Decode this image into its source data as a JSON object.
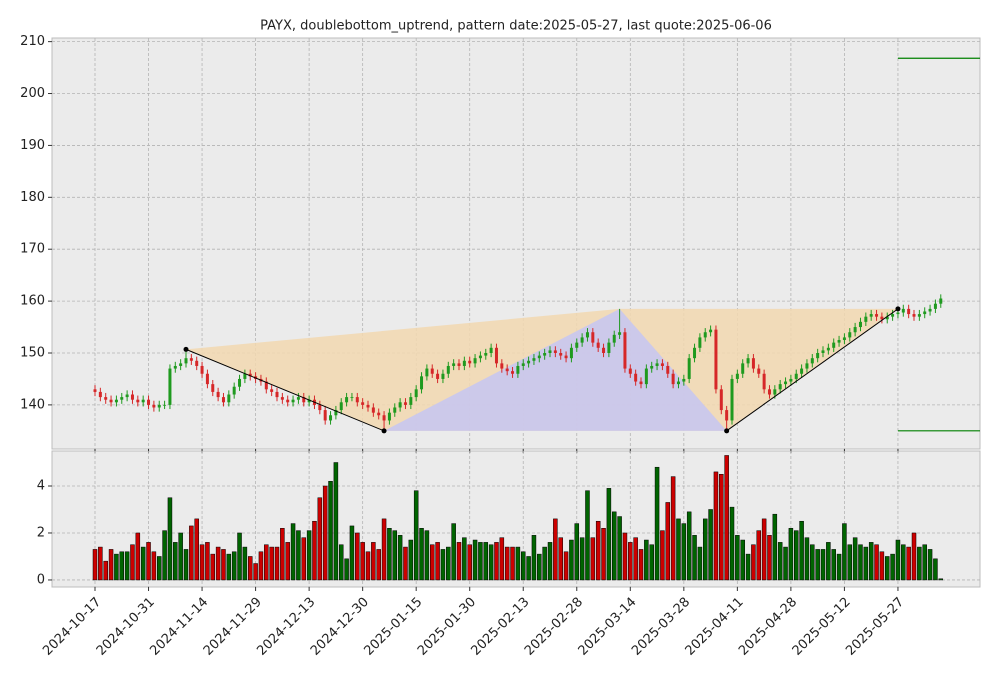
{
  "chart_data": [
    {
      "type": "candlestick",
      "title": "PAYX, doublebottom_uptrend, pattern date:2025-05-27, last quote:2025-06-06",
      "categories": [
        "2024-10-17",
        null,
        null,
        null,
        null,
        null,
        null,
        null,
        null,
        null,
        "2024-10-31",
        null,
        null,
        null,
        null,
        null,
        null,
        null,
        null,
        null,
        "2024-11-14",
        null,
        null,
        null,
        null,
        null,
        null,
        null,
        null,
        null,
        "2024-11-29",
        null,
        null,
        null,
        null,
        null,
        null,
        null,
        null,
        null,
        "2024-12-13",
        null,
        null,
        null,
        null,
        null,
        null,
        null,
        null,
        null,
        "2024-12-30",
        null,
        null,
        null,
        null,
        null,
        null,
        null,
        null,
        null,
        "2025-01-15",
        null,
        null,
        null,
        null,
        null,
        null,
        null,
        null,
        null,
        "2025-01-30",
        null,
        null,
        null,
        null,
        null,
        null,
        null,
        null,
        null,
        "2025-02-13",
        null,
        null,
        null,
        null,
        null,
        null,
        null,
        null,
        null,
        "2025-02-28",
        null,
        null,
        null,
        null,
        null,
        null,
        null,
        null,
        null,
        "2025-03-14",
        null,
        null,
        null,
        null,
        null,
        null,
        null,
        null,
        null,
        "2025-03-28",
        null,
        null,
        null,
        null,
        null,
        null,
        null,
        null,
        null,
        "2025-04-11",
        null,
        null,
        null,
        null,
        null,
        null,
        null,
        null,
        null,
        "2025-04-28",
        null,
        null,
        null,
        null,
        null,
        null,
        null,
        null,
        null,
        "2025-05-12",
        null,
        null,
        null,
        null,
        null,
        null,
        null,
        null,
        null,
        "2025-05-27",
        null,
        null,
        null,
        null,
        null,
        null,
        null,
        null
      ],
      "open": [
        143,
        142.5,
        141.5,
        141,
        140.5,
        141,
        141.5,
        142,
        141,
        140.5,
        141,
        140,
        139.5,
        140,
        140,
        147,
        147.5,
        148,
        149,
        148.5,
        147.5,
        146,
        144,
        142.5,
        141.5,
        140.5,
        142,
        143.5,
        145,
        146,
        145.5,
        145,
        144.5,
        143,
        142.5,
        141.5,
        141,
        140.5,
        141,
        141.5,
        140.5,
        141,
        140,
        139,
        137,
        138,
        139,
        140.5,
        141.5,
        141.5,
        140.5,
        140,
        139.5,
        138.5,
        138,
        137,
        138.5,
        139.5,
        140.5,
        140,
        141.5,
        143,
        145.5,
        147,
        146,
        145,
        146,
        147.5,
        148,
        147.5,
        148.5,
        148,
        149,
        149.5,
        150,
        151,
        148,
        147,
        146.5,
        146,
        147.5,
        148,
        148.5,
        149,
        149.5,
        150,
        150.5,
        150,
        149.5,
        149,
        151,
        152,
        153,
        154,
        152,
        151,
        150,
        152,
        153.5,
        154,
        147,
        146,
        144.5,
        144,
        147,
        147.5,
        148,
        147.5,
        146,
        144,
        144.5,
        145,
        149,
        151,
        153,
        154,
        154.5,
        143,
        139,
        137,
        145,
        146,
        148,
        149,
        147,
        146,
        143,
        142,
        143,
        144,
        144.5,
        145,
        146,
        147,
        148,
        149,
        150,
        150.5,
        151,
        152,
        152.5,
        153,
        154,
        155,
        156,
        157,
        157.5,
        157,
        156.5,
        157,
        157.5,
        157.8,
        158.5,
        157.5,
        157,
        157.5,
        158,
        158.5,
        159.5
      ],
      "high": [
        143.8,
        143.3,
        142.3,
        141.8,
        141.8,
        142.3,
        142.8,
        142.8,
        141.8,
        141.8,
        141.8,
        140.8,
        140.8,
        140.8,
        147.8,
        148.3,
        148.8,
        150.7,
        149.8,
        149.3,
        148.3,
        146.8,
        144.8,
        143.3,
        142.3,
        142.8,
        144.3,
        145.8,
        146.8,
        146.8,
        146.3,
        145.8,
        145.3,
        143.8,
        143.3,
        142.3,
        141.8,
        141.8,
        142.3,
        142.3,
        141.8,
        141.8,
        140.8,
        139.8,
        138.8,
        139.8,
        141.3,
        142.3,
        142.3,
        142.3,
        141.3,
        140.8,
        140.3,
        139.3,
        138.8,
        139.3,
        140.3,
        141.3,
        141.3,
        142.3,
        143.8,
        146.3,
        147.8,
        147.8,
        146.8,
        146.8,
        148.3,
        148.8,
        148.8,
        149.3,
        149.3,
        149.8,
        150.3,
        150.8,
        151.8,
        151.8,
        148.8,
        147.8,
        147.3,
        148.3,
        148.8,
        149.3,
        149.8,
        150.3,
        150.8,
        151.3,
        151.3,
        150.8,
        150.3,
        151.8,
        152.8,
        153.8,
        154.8,
        154.8,
        152.8,
        151.8,
        152.8,
        154.3,
        158.5,
        154.8,
        147.8,
        146.8,
        145.3,
        147.8,
        148.3,
        148.8,
        148.8,
        148.3,
        146.8,
        145.3,
        145.8,
        149.8,
        151.8,
        153.8,
        154.8,
        155.3,
        155.3,
        143.8,
        139.8,
        145.8,
        146.8,
        148.8,
        149.8,
        149.8,
        147.8,
        146.8,
        143.8,
        143.8,
        144.8,
        145.3,
        145.8,
        146.8,
        147.8,
        148.8,
        149.8,
        150.8,
        151.3,
        151.8,
        152.8,
        153.3,
        153.8,
        154.8,
        155.8,
        156.8,
        157.8,
        158.3,
        158.3,
        157.8,
        157.8,
        158.3,
        158.5,
        159.3,
        159.3,
        158.3,
        158.3,
        158.8,
        159.3,
        160.3,
        161.3
      ],
      "low": [
        141.7,
        140.7,
        140.2,
        139.7,
        139.7,
        140.2,
        140.7,
        140.2,
        139.7,
        139.7,
        139.2,
        138.7,
        138.7,
        139.2,
        139.2,
        146.2,
        146.7,
        147.2,
        147.7,
        146.7,
        145.2,
        143.2,
        141.7,
        140.7,
        139.7,
        139.7,
        141.2,
        142.7,
        144.2,
        144.7,
        144.2,
        143.7,
        142.2,
        141.7,
        140.7,
        140.2,
        139.7,
        139.7,
        140.2,
        139.7,
        139.7,
        139.2,
        138.2,
        136.2,
        136.2,
        137.2,
        138.2,
        139.7,
        140.7,
        139.7,
        139.2,
        138.7,
        137.7,
        137.2,
        135,
        136.2,
        137.7,
        138.7,
        139.2,
        139.2,
        140.7,
        142.2,
        144.7,
        145.2,
        144.2,
        144.2,
        145.2,
        146.7,
        146.7,
        146.7,
        147.2,
        147.2,
        148.2,
        148.7,
        149.2,
        147.2,
        146.2,
        145.7,
        145.2,
        145.2,
        146.7,
        147.2,
        147.7,
        148.2,
        148.7,
        149.2,
        149.2,
        148.7,
        148.2,
        148.2,
        150.2,
        151.2,
        152.2,
        151.2,
        150.2,
        149.2,
        149.2,
        151.2,
        152.7,
        146.2,
        145.2,
        143.7,
        143.2,
        143.2,
        146.2,
        146.7,
        146.7,
        145.2,
        143.2,
        143.2,
        143.7,
        144.2,
        148.2,
        150.2,
        152.2,
        153.2,
        142.2,
        138.2,
        135,
        136.2,
        144.2,
        145.2,
        147.2,
        146.2,
        145.2,
        142.2,
        141.2,
        141.2,
        142.2,
        143.2,
        143.7,
        144.2,
        145.2,
        146.2,
        147.2,
        148.2,
        149.2,
        149.7,
        150.2,
        151.2,
        151.7,
        152.2,
        153.2,
        154.2,
        155.2,
        156.2,
        156.2,
        155.7,
        155.7,
        156.2,
        156.7,
        157,
        156.7,
        156.2,
        156.2,
        156.7,
        157.2,
        157.7,
        158.7
      ],
      "close": [
        142.5,
        141.5,
        141,
        140.5,
        141,
        141.5,
        142,
        141,
        140.5,
        141,
        140,
        139.5,
        140,
        140,
        147,
        147.5,
        148,
        149,
        148.5,
        147.5,
        146,
        144,
        142.5,
        141.5,
        140.5,
        142,
        143.5,
        145,
        146,
        145.5,
        145,
        144.5,
        143,
        142.5,
        141.5,
        141,
        140.5,
        141,
        141.5,
        140.5,
        141,
        140,
        139,
        137,
        138,
        139,
        140.5,
        141.5,
        141.5,
        140.5,
        140,
        139.5,
        138.5,
        138,
        137,
        138.5,
        139.5,
        140.5,
        140,
        141.5,
        143,
        145.5,
        147,
        146,
        145,
        146,
        147.5,
        148,
        147.5,
        148.5,
        148,
        149,
        149.5,
        150,
        151,
        148,
        147,
        146.5,
        146,
        147.5,
        148,
        148.5,
        149,
        149.5,
        150,
        150.5,
        150,
        149.5,
        149,
        151,
        152,
        153,
        154,
        152,
        151,
        150,
        152,
        153.5,
        154,
        147,
        146,
        144.5,
        144,
        147,
        147.5,
        148,
        147.5,
        146,
        144,
        144.5,
        145,
        149,
        151,
        153,
        154,
        154.5,
        143,
        139,
        137,
        145,
        146,
        148,
        149,
        147,
        146,
        143,
        142,
        143,
        144,
        144.5,
        145,
        146,
        147,
        148,
        149,
        150,
        150.5,
        151,
        152,
        152.5,
        153,
        154,
        155,
        156,
        157,
        157.5,
        157,
        156.5,
        157,
        157.5,
        157.8,
        158.5,
        157.5,
        157,
        157.5,
        158,
        158.5,
        159.5,
        160.5
      ],
      "up_color": "#1f9a1f",
      "down_color": "#d62728",
      "ylim": [
        131.5,
        210.7
      ],
      "yticks": [
        140,
        150,
        160,
        170,
        180,
        190,
        200,
        210
      ],
      "grid": true,
      "pattern": {
        "points": [
          {
            "x": 17,
            "y": 150.7
          },
          {
            "x": 54,
            "y": 135
          },
          {
            "x": 98,
            "y": 158.5
          },
          {
            "x": 118,
            "y": 135
          },
          {
            "x": 150,
            "y": 158.5
          }
        ],
        "line_color": "#000000",
        "fill_colors": [
          "#f2d8b0",
          "#c6c6f2"
        ]
      },
      "levels": [
        206.8,
        135
      ],
      "level_color": "#008000"
    },
    {
      "type": "bar",
      "values": [
        1.3,
        1.4,
        0.8,
        1.3,
        1.1,
        1.2,
        1.2,
        1.5,
        2.0,
        1.4,
        1.6,
        1.2,
        1.0,
        2.1,
        3.5,
        1.6,
        2.0,
        1.3,
        2.3,
        2.6,
        1.5,
        1.6,
        1.1,
        1.4,
        1.3,
        1.1,
        1.2,
        2.0,
        1.4,
        1.0,
        0.7,
        1.2,
        1.5,
        1.4,
        1.4,
        2.2,
        1.6,
        2.4,
        2.1,
        1.8,
        2.1,
        2.5,
        3.5,
        4.0,
        4.2,
        5.0,
        1.5,
        0.9,
        2.3,
        2.0,
        1.6,
        1.2,
        1.6,
        1.3,
        2.6,
        2.2,
        2.1,
        1.9,
        1.4,
        1.7,
        3.8,
        2.2,
        2.1,
        1.5,
        1.6,
        1.3,
        1.4,
        2.4,
        1.6,
        1.8,
        1.5,
        1.7,
        1.6,
        1.6,
        1.5,
        1.6,
        1.8,
        1.4,
        1.4,
        1.4,
        1.2,
        1.0,
        1.9,
        1.1,
        1.4,
        1.6,
        2.6,
        1.8,
        1.2,
        1.7,
        2.4,
        1.8,
        3.8,
        1.8,
        2.5,
        2.2,
        3.9,
        2.9,
        2.7,
        2.0,
        1.6,
        1.8,
        1.3,
        1.7,
        1.5,
        4.8,
        2.1,
        3.3,
        4.4,
        2.6,
        2.4,
        2.9,
        1.9,
        1.4,
        2.6,
        3.0,
        4.6,
        4.5,
        5.3,
        3.1,
        1.9,
        1.7,
        1.1,
        1.5,
        2.1,
        2.6,
        1.9,
        2.8,
        1.6,
        1.4,
        2.2,
        2.1,
        2.5,
        1.8,
        1.5,
        1.3,
        1.3,
        1.6,
        1.3,
        1.1,
        2.4,
        1.5,
        1.8,
        1.5,
        1.4,
        1.6,
        1.5,
        1.2,
        1.0,
        1.1,
        1.7,
        1.5,
        1.4,
        2.0,
        1.4,
        1.5,
        1.3,
        0.9,
        0.05
      ],
      "up_color": "#006400",
      "down_color": "#cc0000",
      "ylim": [
        -0.3,
        5.49
      ],
      "yticks": [
        0,
        2,
        4
      ],
      "grid": true
    }
  ]
}
